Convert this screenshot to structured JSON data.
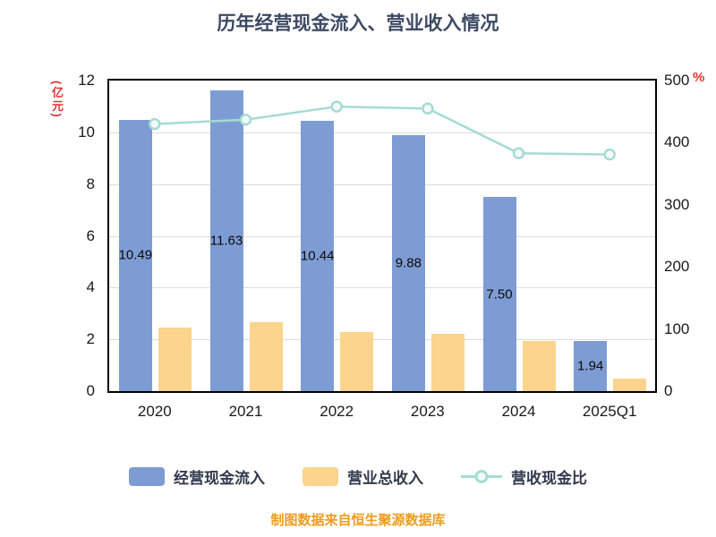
{
  "title": "历年经营现金流入、营业收入情况",
  "source_note": "制图数据来自恒生聚源数据库",
  "left_axis_unit": "(亿元)",
  "right_axis_unit": "%",
  "colors": {
    "title": "#3d4a63",
    "axis_unit_red": "#e03434",
    "bar_blue": "#7e9cd4",
    "bar_orange": "#fcd48d",
    "line_teal": "#a6dbd4",
    "source_orange": "#ef9c1d"
  },
  "legend": [
    {
      "label": "经营现金流入",
      "type": "bar",
      "color": "#7e9cd4"
    },
    {
      "label": "营业总收入",
      "type": "bar",
      "color": "#fcd48d"
    },
    {
      "label": "营收现金比",
      "type": "line",
      "color": "#a6dbd4"
    }
  ],
  "chart_data": {
    "type": "bar",
    "subtype": "grouped bars with overlay line",
    "title": "历年经营现金流入、营业收入情况",
    "categories": [
      "2020",
      "2021",
      "2022",
      "2023",
      "2024",
      "2025Q1"
    ],
    "series": [
      {
        "name": "经营现金流入",
        "type": "bar",
        "axis": "left",
        "color": "#7e9cd4",
        "values": [
          10.49,
          11.63,
          10.44,
          9.88,
          7.5,
          1.94
        ],
        "labels": [
          "10.49",
          "11.63",
          "10.44",
          "9.88",
          "7.50",
          "1.94"
        ]
      },
      {
        "name": "营业总收入",
        "type": "bar",
        "axis": "left",
        "color": "#fcd48d",
        "values": [
          2.45,
          2.65,
          2.3,
          2.2,
          1.95,
          0.5
        ]
      },
      {
        "name": "营收现金比",
        "type": "line",
        "axis": "right",
        "color": "#a6dbd4",
        "values": [
          430,
          437,
          458,
          455,
          383,
          381
        ]
      }
    ],
    "left_axis": {
      "label": "(亿元)",
      "min": 0,
      "max": 12,
      "ticks": [
        0,
        2,
        4,
        6,
        8,
        10,
        12
      ]
    },
    "right_axis": {
      "label": "%",
      "min": 0,
      "max": 500,
      "ticks": [
        0,
        100,
        200,
        300,
        400,
        500
      ]
    },
    "grid": true,
    "legend_position": "bottom"
  }
}
